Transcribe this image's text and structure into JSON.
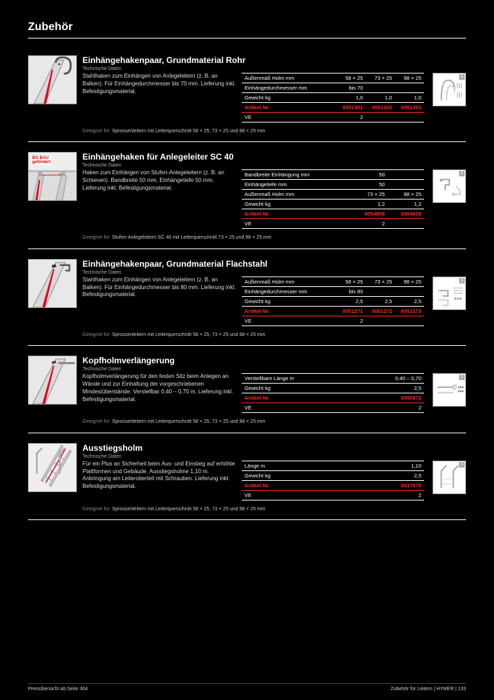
{
  "page": {
    "title": "Zubehör",
    "technische_daten_label": "Technische Daten",
    "suitable_label": "Geeignet für:",
    "footer_left": "Preisübersicht ab Seite 364",
    "footer_right": "Zubehör für Leitern | HYMER | 133"
  },
  "colors": {
    "highlight": "#ff2a2a",
    "rule": "#ffffff",
    "muted": "#aaaaaa",
    "bg": "#000000"
  },
  "sections": [
    {
      "id": "einhaengehakenpaar-rohr",
      "title": "Einhängehakenpaar, Grundmaterial Rohr",
      "description": "Stahlhaken zum Einhängen von Anlegeleitern (z. B. an Balken). Für Einhängedurchmesser bis 70 mm. Lieferung inkl. Befestigungsmaterial.",
      "icon_badge": "3",
      "table": {
        "columns": [
          {
            "key": "c0",
            "label": "",
            "align": "left",
            "width": "52%"
          },
          {
            "key": "c1",
            "label": "",
            "align": "right",
            "width": "16%"
          },
          {
            "key": "c2",
            "label": "",
            "align": "right",
            "width": "16%"
          },
          {
            "key": "c3",
            "label": "",
            "align": "right",
            "width": "16%"
          }
        ],
        "rows": [
          {
            "cells": [
              "Außenmaß Holm mm",
              "58 × 25",
              "73 × 25",
              "98 × 25"
            ],
            "highlight": false
          },
          {
            "cells": [
              "Einhängedurchmesser mm",
              "bis 70",
              "",
              ""
            ],
            "highlight": false
          },
          {
            "cells": [
              "Gewicht kg",
              "1,0",
              "1,0",
              "1,0"
            ],
            "highlight": false
          },
          {
            "cells": [
              "Artikel-Nr.",
              "0051301",
              "0051302",
              "0051303"
            ],
            "highlight": true
          },
          {
            "cells": [
              "VE",
              "2",
              "",
              ""
            ],
            "highlight": false
          }
        ]
      },
      "suitable": "Sprossenleitern mit Leiterquerschnitt 58 × 25, 73 × 25 und 98 × 25 mm",
      "thumb_type": "hook-tube"
    },
    {
      "id": "einhaengehaken-sc40",
      "title": "Einhängehaken für Anlegeleiter SC 40",
      "description": "Haken zum Einhängen von Stufen-Anlegeleitern (z. B. an Schienen). Bandbreite 50 mm, Einhängetiefe 50 mm. Lieferung inkl. Befestigungsmaterial.",
      "icon_badge": "2",
      "bgbau": "BG BAU\ngefördert",
      "table": {
        "columns": [
          {
            "key": "c0",
            "label": "",
            "align": "left",
            "width": "60%"
          },
          {
            "key": "c1",
            "label": "",
            "align": "right",
            "width": "20%"
          },
          {
            "key": "c2",
            "label": "",
            "align": "right",
            "width": "20%"
          }
        ],
        "rows": [
          {
            "cells": [
              "Bandbreite Einhängung mm",
              "50",
              ""
            ],
            "highlight": false
          },
          {
            "cells": [
              "Einhängetiefe mm",
              "50",
              ""
            ],
            "highlight": false
          },
          {
            "cells": [
              "Außenmaß Holm mm",
              "73 × 25",
              "98 × 25"
            ],
            "highlight": false
          },
          {
            "cells": [
              "Gewicht kg",
              "1,2",
              "1,2"
            ],
            "highlight": false
          },
          {
            "cells": [
              "Artikel-Nr.",
              "0054858",
              "0054859"
            ],
            "highlight": true
          },
          {
            "cells": [
              "VE",
              "2",
              ""
            ],
            "highlight": false
          }
        ]
      },
      "suitable": "Stufen-Anlegeleitern SC 40 mit Leiterquerschnitt 73 × 25 und 98 × 25 mm",
      "thumb_type": "hook-bracket"
    },
    {
      "id": "einhaengehakenpaar-flach",
      "title": "Einhängehakenpaar, Grundmaterial Flachstahl",
      "description": "Stahlhaken zum Einhängen von Anlegeleitern (z. B. an Balken). Für Einhängedurchmesser bis 80 mm. Lieferung inkl. Befestigungsmaterial.",
      "icon_badge": "3",
      "table": {
        "columns": [
          {
            "key": "c0",
            "label": "",
            "align": "left",
            "width": "52%"
          },
          {
            "key": "c1",
            "label": "",
            "align": "right",
            "width": "16%"
          },
          {
            "key": "c2",
            "label": "",
            "align": "right",
            "width": "16%"
          },
          {
            "key": "c3",
            "label": "",
            "align": "right",
            "width": "16%"
          }
        ],
        "rows": [
          {
            "cells": [
              "Außenmaß Holm mm",
              "58 × 25",
              "73 × 25",
              "98 × 25"
            ],
            "highlight": false
          },
          {
            "cells": [
              "Einhängedurchmesser mm",
              "bis 80",
              "",
              ""
            ],
            "highlight": false
          },
          {
            "cells": [
              "Gewicht kg",
              "2,5",
              "2,5",
              "2,5"
            ],
            "highlight": false
          },
          {
            "cells": [
              "Artikel-Nr.",
              "0051271",
              "0051272",
              "0051273"
            ],
            "highlight": true
          },
          {
            "cells": [
              "VE",
              "2",
              "",
              ""
            ],
            "highlight": false
          }
        ]
      },
      "suitable": "Sprossenleitern mit Leiterquerschnitt 58 × 25, 73 × 25 und 98 × 25 mm",
      "thumb_type": "hook-flat"
    },
    {
      "id": "kopfholmverlaengerung",
      "title": "Kopfholmverlängerung",
      "description": "Kopfholmverlängerung für den festen Sitz beim Anlegen an Wände und zur Einhaltung der vorgeschriebenen Mindestüberstände. Verstellbar 0,40 – 0,70 m. Lieferung inkl. Befestigungsmaterial.",
      "icon_badge": "3",
      "table": {
        "columns": [
          {
            "key": "c0",
            "label": "",
            "align": "left",
            "width": "70%"
          },
          {
            "key": "c1",
            "label": "",
            "align": "right",
            "width": "30%"
          }
        ],
        "rows": [
          {
            "cells": [
              "Verstellbare Länge m",
              "0,40 – 0,70"
            ],
            "highlight": false
          },
          {
            "cells": [
              "Gewicht kg",
              "2,5"
            ],
            "highlight": false
          },
          {
            "cells": [
              "Artikel-Nr.",
              "0050972"
            ],
            "highlight": true
          },
          {
            "cells": [
              "VE",
              "2"
            ],
            "highlight": false
          }
        ]
      },
      "suitable": "Sprossenleitern mit Leiterquerschnitt 58 × 25, 73 × 25 und 98 × 25 mm",
      "thumb_type": "extension"
    },
    {
      "id": "ausstiegsholm",
      "title": "Ausstiegsholm",
      "description": "Für ein Plus an Sicherheit beim Aus- und Einstieg auf erhöhte Plattformen und Gebäude. Ausstiegsholme 1,10 m. Anbringung am Leiteroberteil mit Schrauben. Lieferung inkl. Befestigungsmaterial.",
      "icon_badge": "3",
      "table": {
        "columns": [
          {
            "key": "c0",
            "label": "",
            "align": "left",
            "width": "70%"
          },
          {
            "key": "c1",
            "label": "",
            "align": "right",
            "width": "30%"
          }
        ],
        "rows": [
          {
            "cells": [
              "Länge m",
              "1,10"
            ],
            "highlight": false
          },
          {
            "cells": [
              "Gewicht kg",
              "2,5"
            ],
            "highlight": false
          },
          {
            "cells": [
              "Artikel-Nr.",
              "0017570"
            ],
            "highlight": true
          },
          {
            "cells": [
              "VE",
              "2"
            ],
            "highlight": false
          }
        ]
      },
      "suitable": "Sprossenleitern mit Leiterquerschnitt 58 × 25, 73 × 25 und 98 × 25 mm",
      "thumb_type": "exit-rail"
    }
  ]
}
